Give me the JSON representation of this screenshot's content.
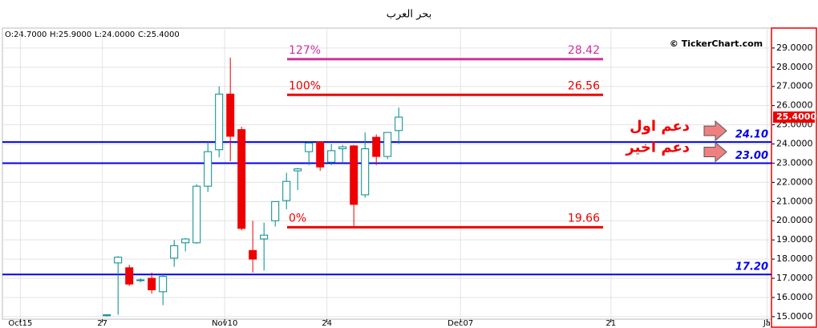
{
  "chart_data": {
    "type": "candlestick",
    "title": "بحر العرب",
    "ohlc_labels": [
      "O:24.7000",
      "H:25.9000",
      "L:24.0000",
      "C:25.4000"
    ],
    "watermark": "© TickerChart.com",
    "x": [
      0,
      1,
      2,
      3,
      4,
      5,
      6,
      7,
      8,
      9,
      10,
      11,
      12,
      13,
      14,
      15,
      16,
      17,
      18,
      19,
      20,
      21,
      22,
      23,
      24,
      25,
      26
    ],
    "open": [
      15.05,
      17.8,
      17.55,
      16.9,
      17.0,
      16.3,
      18.05,
      18.85,
      18.85,
      21.8,
      23.7,
      26.6,
      24.75,
      18.45,
      19.05,
      20.0,
      21.05,
      22.6,
      23.6,
      24.1,
      23.05,
      23.75,
      23.9,
      21.35,
      24.35,
      23.35,
      24.7
    ],
    "high": [
      15.1,
      18.15,
      17.7,
      17.0,
      17.3,
      17.2,
      19.0,
      19.1,
      21.9,
      24.1,
      27.0,
      28.5,
      24.9,
      20.0,
      19.9,
      21.0,
      22.5,
      22.75,
      24.1,
      24.1,
      24.0,
      23.95,
      23.95,
      24.6,
      24.5,
      24.6,
      25.9
    ],
    "low": [
      15.0,
      15.1,
      16.6,
      16.8,
      16.2,
      15.6,
      17.6,
      18.4,
      18.8,
      21.5,
      23.3,
      23.1,
      19.5,
      17.3,
      17.4,
      19.7,
      20.6,
      21.6,
      22.9,
      22.6,
      22.9,
      23.0,
      19.7,
      21.2,
      22.9,
      23.2,
      24.0
    ],
    "close": [
      15.1,
      18.1,
      16.7,
      16.92,
      16.4,
      17.1,
      18.7,
      19.05,
      21.8,
      23.6,
      26.6,
      24.4,
      19.6,
      18.0,
      19.25,
      21.0,
      22.05,
      22.7,
      24.05,
      22.8,
      23.65,
      23.85,
      20.85,
      23.75,
      23.35,
      24.6,
      25.4
    ],
    "up_color": "#008b8b",
    "down_color": "#ee0000",
    "xlim": [
      -9.3,
      59.2
    ],
    "ylim": [
      14.87,
      30.04
    ],
    "xticks": [
      {
        "value": -7.7,
        "label": "Oct15"
      },
      {
        "value": -0.4,
        "label": "27"
      },
      {
        "value": 10.5,
        "label": "Nov10"
      },
      {
        "value": 19.6,
        "label": "24"
      },
      {
        "value": 31.5,
        "label": "Dec07"
      },
      {
        "value": 44.9,
        "label": "21"
      },
      {
        "value": 58.8,
        "label": "Ja"
      }
    ],
    "yticks": [
      {
        "value": 15,
        "label": "15.0000"
      },
      {
        "value": 16,
        "label": "16.0000"
      },
      {
        "value": 17,
        "label": "17.0000"
      },
      {
        "value": 18,
        "label": "18.0000"
      },
      {
        "value": 19,
        "label": "19.0000"
      },
      {
        "value": 20,
        "label": "20.0000"
      },
      {
        "value": 21,
        "label": "21.0000"
      },
      {
        "value": 22,
        "label": "22.0000"
      },
      {
        "value": 23,
        "label": "23.0000"
      },
      {
        "value": 24,
        "label": "24.0000"
      },
      {
        "value": 25,
        "label": "25.0000"
      },
      {
        "value": 26,
        "label": "26.0000"
      },
      {
        "value": 27,
        "label": "27.0000"
      },
      {
        "value": 28,
        "label": "28.0000"
      },
      {
        "value": 29,
        "label": "29.0000"
      }
    ],
    "grid": true,
    "last_price": {
      "value": 25.4,
      "label": "25.4000"
    },
    "levels": [
      {
        "value": 24.1,
        "label": "24.10"
      },
      {
        "value": 23.0,
        "label": "23.00"
      },
      {
        "value": 17.2,
        "label": "17.20"
      }
    ],
    "level_color": "#0000ee",
    "fib": [
      {
        "pct": "127%",
        "value": 28.42,
        "label": "28.42",
        "color": "#cc3399"
      },
      {
        "pct": "100%",
        "value": 26.56,
        "label": "26.56",
        "color": "#ee0000"
      },
      {
        "pct": "0%",
        "value": 19.66,
        "label": "19.66",
        "color": "#ee0000"
      }
    ],
    "annotations": [
      {
        "text": "دعم اول",
        "value": 24.1
      },
      {
        "text": "دعم اخير",
        "value": 23.0
      }
    ]
  }
}
